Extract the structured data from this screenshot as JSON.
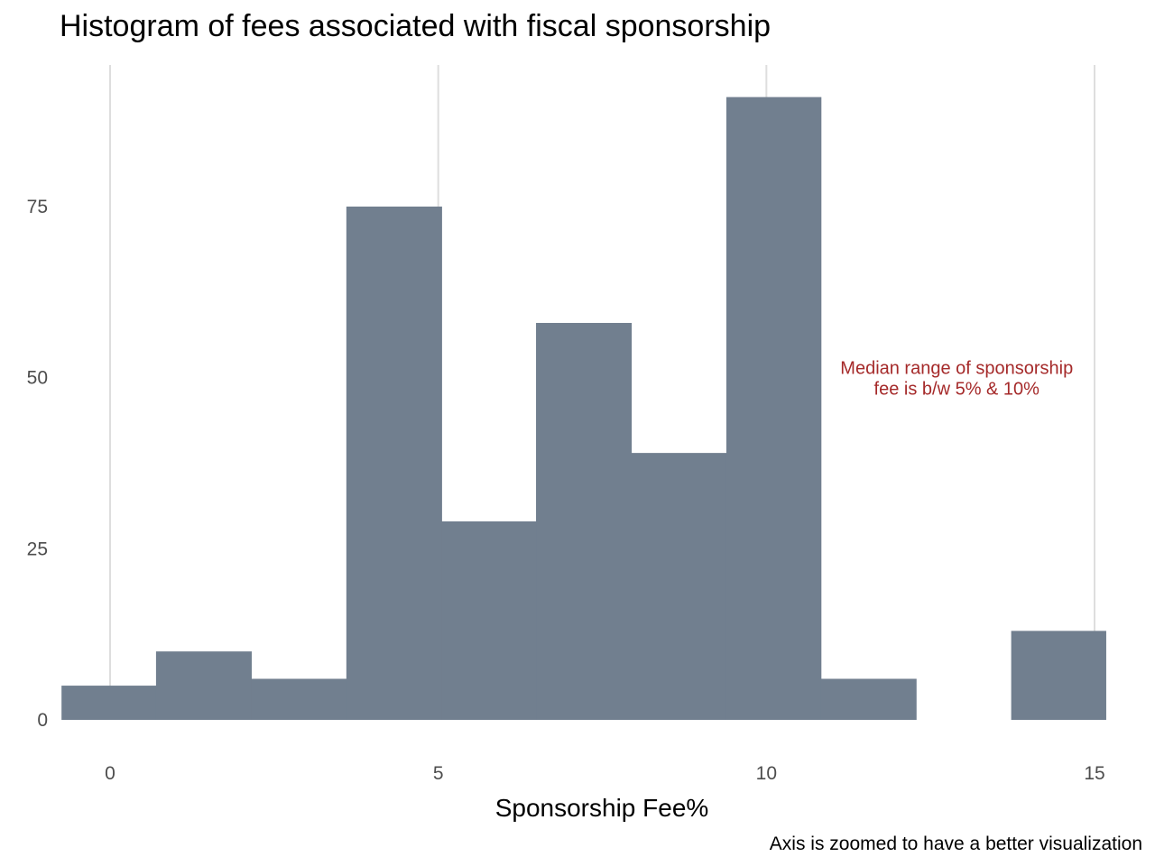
{
  "chart_data": {
    "type": "bar",
    "subtype": "histogram",
    "title": "Histogram of fees associated with fiscal sponsorship",
    "xlabel": "Sponsorship Fee%",
    "ylabel": "",
    "caption": "Axis is zoomed to have a better visualization",
    "xlim": [
      -0.75,
      15.2
    ],
    "ylim": [
      0,
      91
    ],
    "x_ticks": [
      0,
      5,
      10,
      15
    ],
    "y_ticks": [
      0,
      25,
      50,
      75
    ],
    "bin_width": 1.447,
    "bins": [
      {
        "x_start": -0.74,
        "x_end": 0.7,
        "count": 5
      },
      {
        "x_start": 0.7,
        "x_end": 2.15,
        "count": 10
      },
      {
        "x_start": 2.15,
        "x_end": 3.6,
        "count": 6
      },
      {
        "x_start": 3.6,
        "x_end": 5.05,
        "count": 75
      },
      {
        "x_start": 5.05,
        "x_end": 6.49,
        "count": 29
      },
      {
        "x_start": 6.49,
        "x_end": 7.94,
        "count": 58
      },
      {
        "x_start": 7.94,
        "x_end": 9.39,
        "count": 39
      },
      {
        "x_start": 9.39,
        "x_end": 10.83,
        "count": 91
      },
      {
        "x_start": 10.83,
        "x_end": 12.28,
        "count": 6
      },
      {
        "x_start": 12.28,
        "x_end": 13.73,
        "count": 0
      },
      {
        "x_start": 13.73,
        "x_end": 15.17,
        "count": 13
      }
    ],
    "bar_color": "#717f8f",
    "annotation": {
      "lines": [
        "Median range of sponsorship",
        "fee is b/w 5% & 10%"
      ],
      "x": 12.9,
      "y": 50,
      "color": "#a52a2a"
    },
    "grid": "vertical-major-only",
    "legend": "none"
  }
}
